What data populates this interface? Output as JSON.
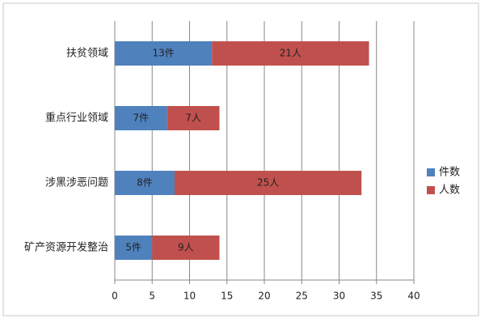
{
  "chart_data": {
    "type": "stacked-barh",
    "categories": [
      "扶贫领域",
      "重点行业领域",
      "涉黑涉恶问题",
      "矿产资源开发整治"
    ],
    "series": [
      {
        "name": "件数",
        "color": "#4f81bd",
        "values": [
          13,
          7,
          8,
          5
        ],
        "value_labels": [
          "13件",
          "7件",
          "8件",
          "5件"
        ]
      },
      {
        "name": "人数",
        "color": "#c0504d",
        "values": [
          21,
          7,
          25,
          9
        ],
        "value_labels": [
          "21人",
          "7人",
          "25人",
          "9人"
        ]
      }
    ],
    "xlim": [
      0,
      40
    ],
    "xticks": [
      0,
      5,
      10,
      15,
      20,
      25,
      30,
      35,
      40
    ],
    "grid": true,
    "legend_position": "right"
  }
}
